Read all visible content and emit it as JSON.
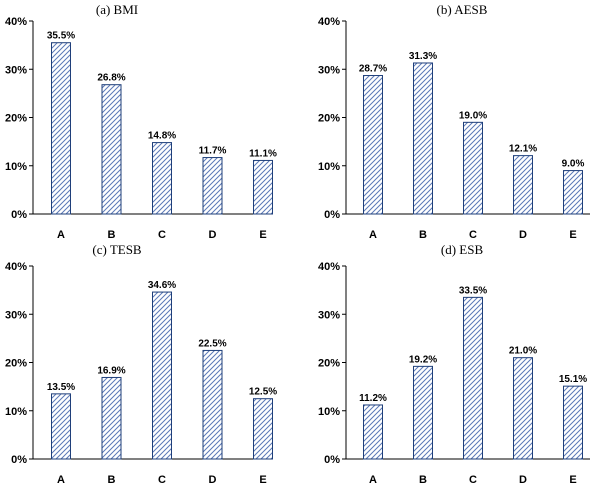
{
  "colors": {
    "bar_stroke": "#1f3f7a",
    "hatch": "#5b79b8",
    "axis": "#000000"
  },
  "chart_data": [
    {
      "type": "bar",
      "title": "(a)  BMI",
      "categories": [
        "A",
        "B",
        "C",
        "D",
        "E"
      ],
      "values": [
        35.5,
        26.8,
        14.8,
        11.7,
        11.1
      ],
      "data_labels": [
        "35.5%",
        "26.8%",
        "14.8%",
        "11.7%",
        "11.1%"
      ],
      "yticks": [
        "0%",
        "10%",
        "20%",
        "30%",
        "40%"
      ],
      "ylim": [
        0,
        40
      ],
      "grid": false
    },
    {
      "type": "bar",
      "title": "(b)  AESB",
      "categories": [
        "A",
        "B",
        "C",
        "D",
        "E"
      ],
      "values": [
        28.7,
        31.3,
        19.0,
        12.1,
        9.0
      ],
      "data_labels": [
        "28.7%",
        "31.3%",
        "19.0%",
        "12.1%",
        "9.0%"
      ],
      "yticks": [
        "0%",
        "10%",
        "20%",
        "30%",
        "40%"
      ],
      "ylim": [
        0,
        40
      ],
      "grid": false
    },
    {
      "type": "bar",
      "title": "(c)  TESB",
      "categories": [
        "A",
        "B",
        "C",
        "D",
        "E"
      ],
      "values": [
        13.5,
        16.9,
        34.6,
        22.5,
        12.5
      ],
      "data_labels": [
        "13.5%",
        "16.9%",
        "34.6%",
        "22.5%",
        "12.5%"
      ],
      "yticks": [
        "0%",
        "10%",
        "20%",
        "30%",
        "40%"
      ],
      "ylim": [
        0,
        40
      ],
      "grid": false
    },
    {
      "type": "bar",
      "title": "(d)  ESB",
      "categories": [
        "A",
        "B",
        "C",
        "D",
        "E"
      ],
      "values": [
        11.2,
        19.2,
        33.5,
        21.0,
        15.1
      ],
      "data_labels": [
        "11.2%",
        "19.2%",
        "33.5%",
        "21.0%",
        "15.1%"
      ],
      "yticks": [
        "0%",
        "10%",
        "20%",
        "30%",
        "40%"
      ],
      "ylim": [
        0,
        40
      ],
      "grid": false
    }
  ]
}
